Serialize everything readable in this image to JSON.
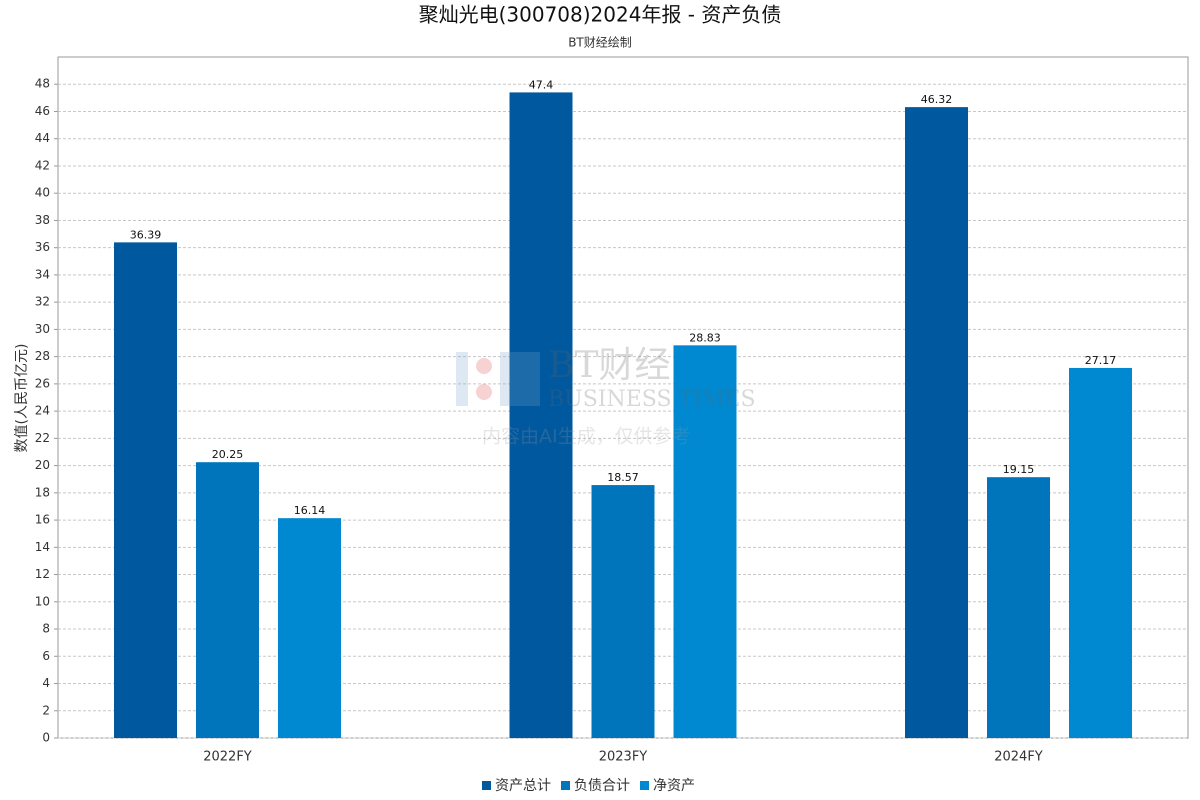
{
  "chart_data": {
    "type": "bar",
    "title": "聚灿光电(300708)2024年报 - 资产负债",
    "subtitle": "BT财经绘制",
    "y_label": "数值(人民币亿元)",
    "watermark": [
      "BT财经",
      "BUSINESS TIMES",
      "内容由AI生成，仅供参考"
    ],
    "categories": [
      "2022FY",
      "2023FY",
      "2024FY"
    ],
    "series": [
      {
        "name": "资产总计",
        "color": "#00589f",
        "values": [
          36.39,
          47.4,
          46.32
        ]
      },
      {
        "name": "负债合计",
        "color": "#0075bb",
        "values": [
          20.25,
          18.57,
          19.15
        ]
      },
      {
        "name": "净资产",
        "color": "#0088d1",
        "values": [
          16.14,
          28.83,
          27.17
        ]
      }
    ],
    "ylim": [
      0,
      50
    ],
    "yticks": [
      0,
      2,
      4,
      6,
      8,
      10,
      12,
      14,
      16,
      18,
      20,
      22,
      24,
      26,
      28,
      30,
      32,
      34,
      36,
      38,
      40,
      42,
      44,
      46,
      48
    ],
    "grid": true
  }
}
